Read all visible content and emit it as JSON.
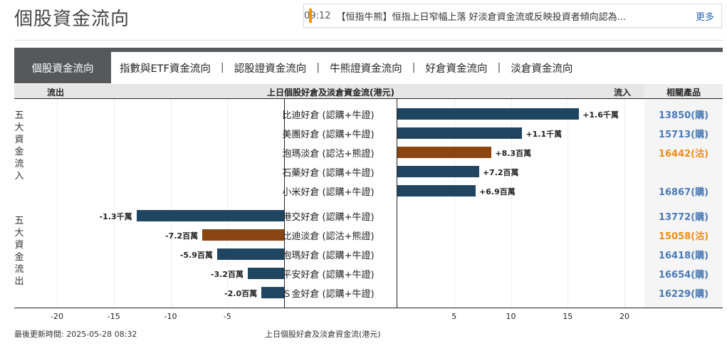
{
  "page_title": "個股資金流向",
  "news": {
    "time": "09:12",
    "text": "【恒指牛熊】恒指上日窄幅上落 好淡倉資金流或反映投資者傾向認為...",
    "more": "更多"
  },
  "tabs": [
    "個股資金流向",
    "指數與ETF資金流向",
    "認股證資金流向",
    "牛熊證資金流向",
    "好倉資金流向",
    "淡倉資金流向"
  ],
  "header": {
    "outflow": "流出",
    "title": "上日個股好倉及淡倉資金流(港元)",
    "inflow": "流入",
    "products": "相關產品"
  },
  "groups": {
    "inflow": "五大資金流入",
    "outflow": "五大資金流出"
  },
  "colors": {
    "bull": "#1f4560",
    "bear": "#8b4511",
    "product_call": "#4a7ab5",
    "product_put": "#f08c12"
  },
  "chart_data": {
    "type": "bar",
    "xlabel": "上日個股好倉及淡倉資金流(港元)",
    "xlim": [
      -20,
      20
    ],
    "ticks": [
      -20,
      -15,
      -10,
      -5,
      5,
      10,
      15,
      20
    ],
    "unit_note": "values in 百萬",
    "inflow": [
      {
        "name": "比迪好倉 (認購+牛證)",
        "value": 16,
        "label": "+1.6千萬",
        "type": "bull",
        "product": "13850(購)"
      },
      {
        "name": "美團好倉 (認購+牛證)",
        "value": 11,
        "label": "+1.1千萬",
        "type": "bull",
        "product": "15713(購)"
      },
      {
        "name": "泡瑪淡倉 (認沽+熊證)",
        "value": 8.3,
        "label": "+8.3百萬",
        "type": "bear",
        "product": "16442(沽)"
      },
      {
        "name": "石藥好倉 (認購+牛證)",
        "value": 7.2,
        "label": "+7.2百萬",
        "type": "bull",
        "product": ""
      },
      {
        "name": "小米好倉 (認購+牛證)",
        "value": 6.9,
        "label": "+6.9百萬",
        "type": "bull",
        "product": "16867(購)"
      }
    ],
    "outflow": [
      {
        "name": "港交好倉 (認購+牛證)",
        "value": -13,
        "label": "-1.3千萬",
        "type": "bull",
        "product": "13772(購)"
      },
      {
        "name": "比迪淡倉 (認沽+熊證)",
        "value": -7.2,
        "label": "-7.2百萬",
        "type": "bear",
        "product": "15058(沽)"
      },
      {
        "name": "泡瑪好倉 (認購+牛證)",
        "value": -5.9,
        "label": "-5.9百萬",
        "type": "bull",
        "product": "16418(購)"
      },
      {
        "name": "平安好倉 (認購+牛證)",
        "value": -3.2,
        "label": "-3.2百萬",
        "type": "bull",
        "product": "16654(購)"
      },
      {
        "name": "Ｓ金好倉 (認購+牛證)",
        "value": -2.0,
        "label": "-2.0百萬",
        "type": "bull",
        "product": "16229(購)"
      }
    ]
  },
  "footer": {
    "updated": "最後更新時間: 2025-05-28 08:32",
    "caption": "上日個股好倉及淡倉資金流(港元)"
  }
}
